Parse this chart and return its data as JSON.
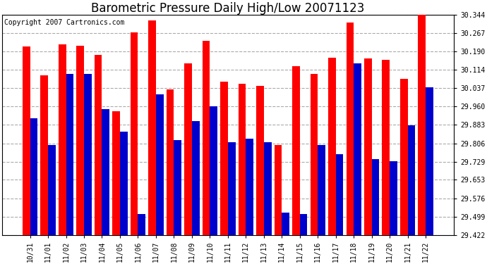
{
  "title": "Barometric Pressure Daily High/Low 20071123",
  "copyright": "Copyright 2007 Cartronics.com",
  "categories": [
    "10/31",
    "11/01",
    "11/02",
    "11/03",
    "11/04",
    "11/05",
    "11/06",
    "11/07",
    "11/08",
    "11/09",
    "11/10",
    "11/11",
    "11/12",
    "11/13",
    "11/14",
    "11/15",
    "11/16",
    "11/17",
    "11/18",
    "11/19",
    "11/20",
    "11/21",
    "11/22"
  ],
  "high_values": [
    30.21,
    30.09,
    30.22,
    30.215,
    30.175,
    29.94,
    30.27,
    30.32,
    30.03,
    30.14,
    30.235,
    30.065,
    30.055,
    30.045,
    29.8,
    30.13,
    30.095,
    30.165,
    30.31,
    30.16,
    30.155,
    30.075,
    30.344
  ],
  "low_values": [
    29.91,
    29.8,
    30.095,
    30.095,
    29.95,
    29.855,
    29.51,
    30.01,
    29.82,
    29.9,
    29.96,
    29.81,
    29.825,
    29.81,
    29.515,
    29.51,
    29.8,
    29.76,
    30.14,
    29.74,
    29.73,
    29.88,
    30.04
  ],
  "high_color": "#ff0000",
  "low_color": "#0000cc",
  "bg_color": "#ffffff",
  "plot_bg_color": "#ffffff",
  "grid_color": "#aaaaaa",
  "ylim_min": 29.422,
  "ylim_max": 30.344,
  "yticks": [
    29.422,
    29.499,
    29.576,
    29.653,
    29.729,
    29.806,
    29.883,
    29.96,
    30.037,
    30.114,
    30.19,
    30.267,
    30.344
  ],
  "title_fontsize": 12,
  "copyright_fontsize": 7,
  "tick_fontsize": 7
}
